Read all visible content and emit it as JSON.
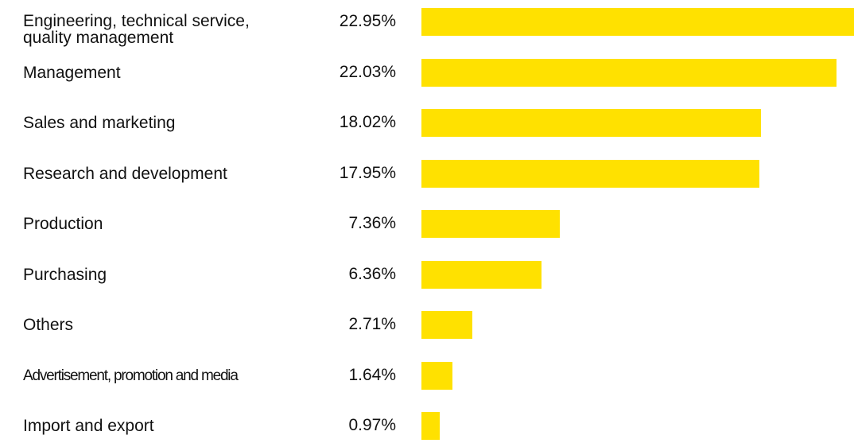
{
  "chart_data": {
    "type": "bar",
    "orientation": "horizontal",
    "title": "",
    "xlabel": "",
    "ylabel": "",
    "xlim": [
      0,
      22.95
    ],
    "grid": false,
    "legend": "none",
    "bar_color": "#FFE100",
    "categories": [
      "Engineering, technical service,\nquality management",
      "Management",
      "Sales and marketing",
      "Research and development",
      "Production",
      "Purchasing",
      "Others",
      "Advertisement, promotion and media",
      "Import and export"
    ],
    "values": [
      22.95,
      22.03,
      18.02,
      17.95,
      7.36,
      6.36,
      2.71,
      1.64,
      0.97
    ],
    "value_labels": [
      "22.95%",
      "22.03%",
      "18.02%",
      "17.95%",
      "7.36%",
      "6.36%",
      "2.71%",
      "1.64%",
      "0.97%"
    ]
  }
}
